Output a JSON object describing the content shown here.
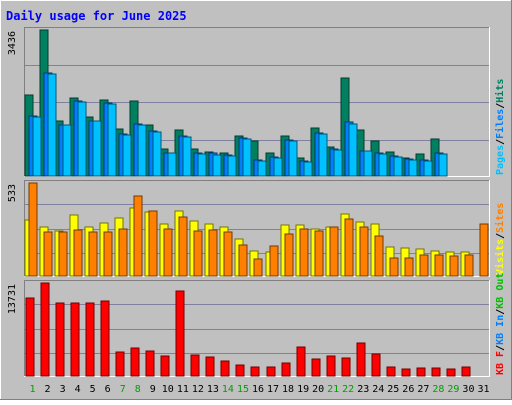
{
  "chart_data": {
    "type": "bar",
    "title": "Daily usage for June 2025",
    "categories": [
      "1",
      "2",
      "3",
      "4",
      "5",
      "6",
      "7",
      "8",
      "9",
      "10",
      "11",
      "12",
      "13",
      "14",
      "15",
      "16",
      "17",
      "18",
      "19",
      "20",
      "21",
      "22",
      "23",
      "24",
      "25",
      "26",
      "27",
      "28",
      "29",
      "30",
      "31"
    ],
    "weekend_days": [
      1,
      7,
      8,
      14,
      15,
      21,
      22,
      28,
      29
    ],
    "grid": true,
    "panels": [
      {
        "ymax": 3436,
        "ymax_label": "3436",
        "side_label": [
          "Pages",
          "Files",
          "Hits"
        ],
        "side_label_colors": [
          "#00c0ff",
          "#0080ff",
          "#008060"
        ],
        "series": [
          {
            "name": "Hits",
            "color": "#008060",
            "values": [
              1910,
              3436,
              1300,
              1845,
              1390,
              1785,
              1100,
              1770,
              1190,
              630,
              1080,
              635,
              565,
              550,
              940,
              820,
              530,
              945,
              430,
              1130,
              690,
              2300,
              1090,
              825,
              560,
              415,
              525,
              880,
              0,
              0,
              0
            ]
          },
          {
            "name": "Files",
            "color": "#0080ff",
            "values": [
              1415,
              2430,
              1205,
              1775,
              1305,
              1725,
              980,
              1230,
              1050,
              550,
              940,
              545,
              530,
              490,
              890,
              375,
              450,
              855,
              360,
              1020,
              630,
              1260,
              600,
              535,
              465,
              390,
              370,
              540,
              0,
              0,
              0
            ]
          },
          {
            "name": "Pages",
            "color": "#00c0ff",
            "values": [
              1390,
              2400,
              1190,
              1750,
              1285,
              1700,
              960,
              1210,
              1030,
              530,
              920,
              520,
              505,
              470,
              870,
              360,
              420,
              825,
              340,
              1000,
              610,
              1230,
              580,
              515,
              445,
              370,
              355,
              520,
              0,
              0,
              0
            ]
          }
        ]
      },
      {
        "ymax": 533,
        "ymax_label": "533",
        "side_label": [
          "Visits",
          "Sites"
        ],
        "side_label_colors": [
          "#ffff00",
          "#ff8000"
        ],
        "series": [
          {
            "name": "Visits",
            "color": "#ffff00",
            "values": [
              320,
              280,
              260,
              350,
              280,
              305,
              330,
              390,
              365,
              300,
              370,
              315,
              300,
              280,
              210,
              145,
              140,
              295,
              290,
              270,
              280,
              355,
              310,
              300,
              165,
              160,
              155,
              145,
              140,
              140,
              0
            ]
          },
          {
            "name": "Sites",
            "color": "#ff8000",
            "values": [
              533,
              250,
              255,
              265,
              255,
              255,
              270,
              460,
              370,
              270,
              340,
              260,
              265,
              250,
              180,
              100,
              170,
              240,
              270,
              260,
              280,
              325,
              280,
              230,
              105,
              105,
              120,
              120,
              115,
              120,
              300
            ]
          }
        ]
      },
      {
        "ymax": 13731,
        "ymax_label": "13731",
        "side_label": [
          "KB F",
          "KB In",
          "KB Out"
        ],
        "side_label_colors": [
          "#ff0000",
          "#0080ff",
          "#00c000"
        ],
        "series": [
          {
            "name": "KB F",
            "color": "#ff0000",
            "values": [
              11500,
              13731,
              10800,
              10800,
              10800,
              11100,
              3500,
              4200,
              3700,
              2900,
              12500,
              3100,
              2800,
              2200,
              1600,
              1400,
              1300,
              1900,
              4300,
              2500,
              2900,
              2700,
              4900,
              3200,
              1300,
              1000,
              1200,
              1200,
              1100,
              1300,
              0
            ]
          }
        ]
      }
    ]
  }
}
